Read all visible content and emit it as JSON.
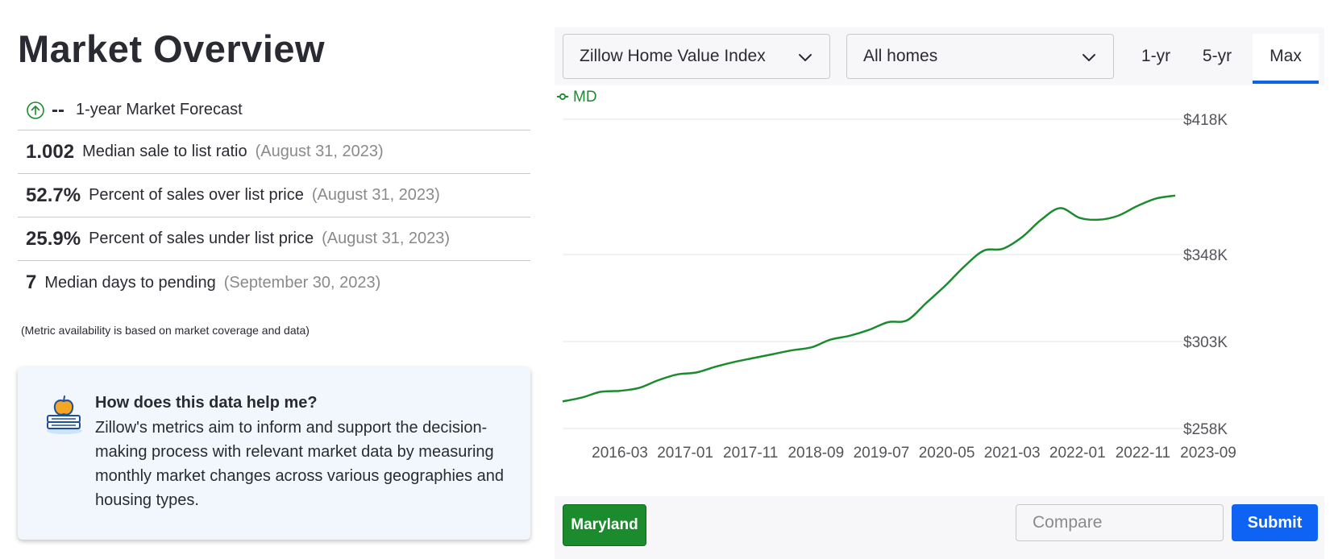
{
  "page_title": "Market Overview",
  "forecast": {
    "value": "--",
    "label": "1-year Market Forecast",
    "icon": "arrow-up-circle-icon"
  },
  "metrics": [
    {
      "value": "1.002",
      "label": "Median sale to list ratio",
      "date": "(August 31, 2023)"
    },
    {
      "value": "52.7%",
      "label": "Percent of sales over list price",
      "date": "(August 31, 2023)"
    },
    {
      "value": "25.9%",
      "label": "Percent of sales under list price",
      "date": "(August 31, 2023)"
    },
    {
      "value": "7",
      "label": "Median days to pending",
      "date": "(September 30, 2023)"
    }
  ],
  "metric_note": "(Metric availability is based on market coverage and data)",
  "help": {
    "title": "How does this data help me?",
    "text": "Zillow's metrics aim to inform and support the decision-making process with relevant market data by measuring monthly market changes across various geographies and housing types.",
    "icon": "apple-on-books-icon"
  },
  "controls": {
    "index_select": "Zillow Home Value Index",
    "type_select": "All homes",
    "ranges": [
      "1-yr",
      "5-yr",
      "Max"
    ],
    "active_range": "Max"
  },
  "bottom": {
    "region_button": "Maryland",
    "compare_placeholder": "Compare",
    "submit_label": "Submit"
  },
  "colors": {
    "series": "#1c8b2d",
    "accent": "#0e63f4",
    "region_button": "#1c8b2d"
  },
  "chart_data": {
    "type": "line",
    "ylabel": "",
    "xlabel": "",
    "y_ticks": [
      {
        "value": 258,
        "label": "$258K"
      },
      {
        "value": 303,
        "label": "$303K"
      },
      {
        "value": 348,
        "label": "$348K"
      },
      {
        "value": 418,
        "label": "$418K"
      }
    ],
    "x_ticks": [
      "2016-03",
      "2017-01",
      "2017-11",
      "2018-09",
      "2019-07",
      "2020-05",
      "2021-03",
      "2022-01",
      "2022-11",
      "2023-09"
    ],
    "ylim": [
      258,
      418
    ],
    "xlim": [
      "2015-09",
      "2023-09"
    ],
    "grid": true,
    "legend_position": "top-left",
    "series": [
      {
        "name": "MD",
        "x": [
          "2015-09",
          "2015-12",
          "2016-03",
          "2016-06",
          "2016-09",
          "2016-12",
          "2017-03",
          "2017-06",
          "2017-09",
          "2017-12",
          "2018-03",
          "2018-06",
          "2018-09",
          "2018-12",
          "2019-03",
          "2019-06",
          "2019-09",
          "2019-12",
          "2020-03",
          "2020-06",
          "2020-09",
          "2020-12",
          "2021-03",
          "2021-06",
          "2021-09",
          "2021-12",
          "2022-03",
          "2022-06",
          "2022-09",
          "2022-12",
          "2023-03",
          "2023-06",
          "2023-09"
        ],
        "values": [
          272,
          274,
          277,
          277.5,
          279,
          283,
          286,
          287,
          290,
          292.5,
          294.5,
          296.5,
          298.5,
          300,
          304,
          306,
          309,
          313,
          314,
          323,
          332,
          342,
          350,
          351,
          357,
          366,
          372,
          367,
          366,
          368,
          373,
          377,
          378.5
        ]
      }
    ]
  }
}
